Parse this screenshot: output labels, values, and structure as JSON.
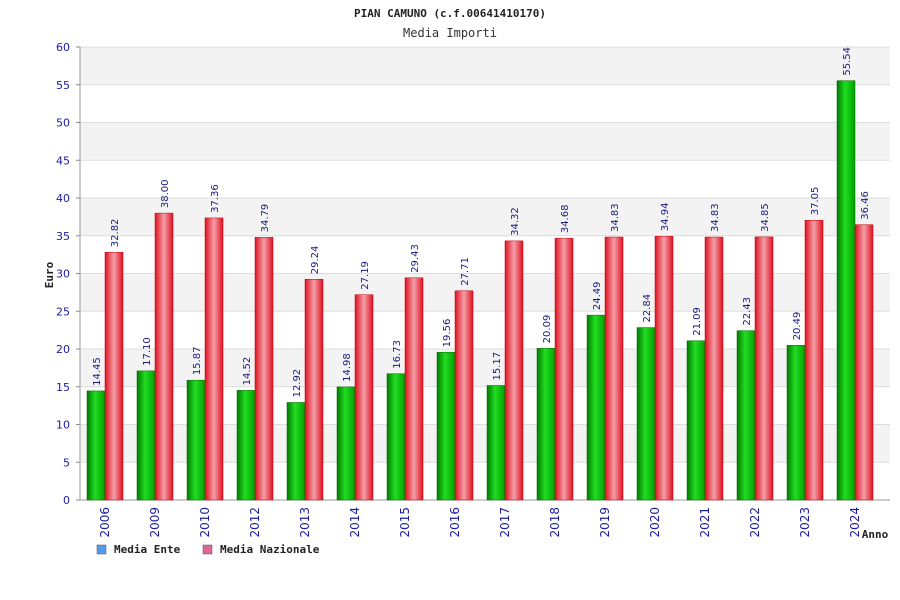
{
  "chart_data": {
    "type": "bar",
    "title": "PIAN CAMUNO (c.f.00641410170)",
    "subtitle": "Media Importi",
    "xlabel": "Anno",
    "ylabel": "Euro",
    "ylim": [
      0,
      60
    ],
    "yticks": [
      0,
      5,
      10,
      15,
      20,
      25,
      30,
      35,
      40,
      45,
      50,
      55,
      60
    ],
    "grid": true,
    "legend_position": "bottom-left",
    "categories": [
      "2006",
      "2009",
      "2010",
      "2012",
      "2013",
      "2014",
      "2015",
      "2016",
      "2017",
      "2018",
      "2019",
      "2020",
      "2021",
      "2022",
      "2023",
      "2024"
    ],
    "series": [
      {
        "name": "Media Ente",
        "color": "#00b000",
        "legend_color": "#5599ee",
        "values": [
          14.45,
          17.1,
          15.87,
          14.52,
          12.92,
          14.98,
          16.73,
          19.56,
          15.17,
          20.09,
          24.49,
          22.84,
          21.09,
          22.43,
          20.49,
          55.54
        ],
        "labels": [
          "14.45",
          "17.10",
          "15.87",
          "14.52",
          "12.92",
          "14.98",
          "16.73",
          "19.56",
          "15.17",
          "20.09",
          "24.49",
          "22.84",
          "21.09",
          "22.43",
          "20.49",
          "55.54"
        ]
      },
      {
        "name": "Media Nazionale",
        "color": "#ee1122",
        "legend_color": "#dd6699",
        "values": [
          32.82,
          38.0,
          37.36,
          34.79,
          29.24,
          27.19,
          29.43,
          27.71,
          34.32,
          34.68,
          34.83,
          34.94,
          34.83,
          34.85,
          37.05,
          36.46
        ],
        "labels": [
          "32.82",
          "38.00",
          "37.36",
          "34.79",
          "29.24",
          "27.19",
          "29.43",
          "27.71",
          "34.32",
          "34.68",
          "34.83",
          "34.94",
          "34.83",
          "34.85",
          "37.05",
          "36.46"
        ]
      }
    ]
  }
}
